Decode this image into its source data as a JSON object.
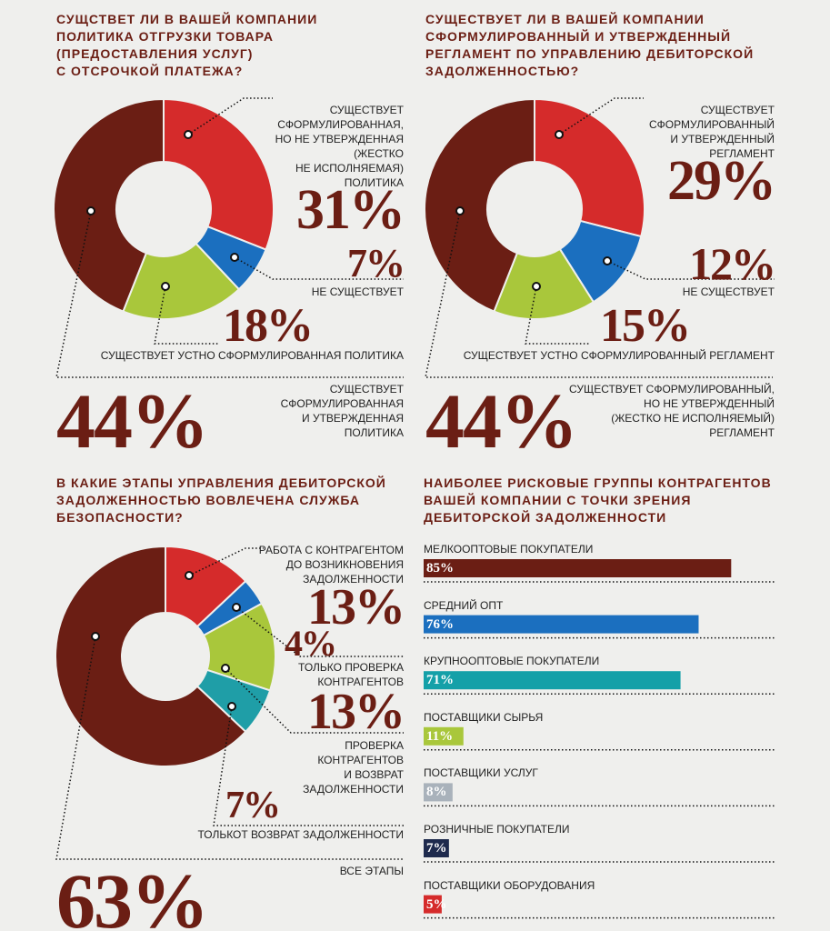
{
  "chart_data": [
    {
      "type": "donut",
      "title": "СУЩСТВЕТ ЛИ В ВАШЕЙ КОМПАНИИ\nПОЛИТИКА ОТГРУЗКИ ТОВАРА\n(ПРЕДОСТАВЛЕНИЯ УСЛУГ)\nС ОТСРОЧКОЙ ПЛАТЕЖА?",
      "categories": [
        "СУЩЕСТВУЕТ\nСФОРМУЛИРОВАННАЯ,\nНО НЕ УТВЕРЖДЕННАЯ\n(ЖЕСТКО\nНЕ ИСПОЛНЯЕМАЯ)\nПОЛИТИКА",
        "НЕ СУЩЕСТВУЕТ",
        "СУЩЕСТВУЕТ УСТНО СФОРМУЛИРОВАННАЯ ПОЛИТИКА",
        "СУЩЕСТВУЕТ\nСФОРМУЛИРОВАННАЯ\nИ УТВЕРЖДЕННАЯ\nПОЛИТИКА"
      ],
      "values": [
        31,
        7,
        18,
        44
      ],
      "value_labels": [
        "31%",
        "7%",
        "18%",
        "44%"
      ],
      "colors": [
        "#d52b2b",
        "#1b6fbf",
        "#a9c73b",
        "#6b1e14"
      ]
    },
    {
      "type": "donut",
      "title": "СУЩЕСТВУЕТ ЛИ В ВАШЕЙ КОМПАНИИ\nСФОРМУЛИРОВАННЫЙ И УТВЕРЖДЕННЫЙ\nРЕГЛАМЕНТ ПО УПРАВЛЕНИЮ ДЕБИТОРСКОЙ\nЗАДОЛЖЕННОСТЬЮ?",
      "categories": [
        "СУЩЕСТВУЕТ\nСФОРМУЛИРОВАННЫЙ\nИ УТВЕРЖДЕННЫЙ\nРЕГЛАМЕНТ",
        "НЕ СУЩЕСТВУЕТ",
        "СУЩЕСТВУЕТ УСТНО СФОРМУЛИРОВАННЫЙ РЕГЛАМЕНТ",
        "СУЩЕСТВУЕТ СФОРМУЛИРОВАННЫЙ,\nНО НЕ УТВЕРЖДЕННЫЙ\n(ЖЕСТКО НЕ ИСПОЛНЯЕМЫЙ)\nРЕГЛАМЕНТ"
      ],
      "values": [
        29,
        12,
        15,
        44
      ],
      "value_labels": [
        "29%",
        "12%",
        "15%",
        "44%"
      ],
      "colors": [
        "#d52b2b",
        "#1b6fbf",
        "#a9c73b",
        "#6b1e14"
      ]
    },
    {
      "type": "donut",
      "title": "В КАКИЕ ЭТАПЫ УПРАВЛЕНИЯ ДЕБИТОРСКОЙ\nЗАДОЛЖЕННОСТЬЮ ВОВЛЕЧЕНА СЛУЖБА\nБЕЗОПАСНОСТИ?",
      "categories": [
        "РАБОТА С КОНТРАГЕНТОМ\nДО ВОЗНИКНОВЕНИЯ\nЗАДОЛЖЕННОСТИ",
        "ТОЛЬКО ПРОВЕРКА\nКОНТРАГЕНТОВ",
        "ПРОВЕРКА\nКОНТРАГЕНТОВ\nИ ВОЗВРАТ\nЗАДОЛЖЕННОСТИ",
        "ТОЛЬКОТ ВОЗВРАТ ЗАДОЛЖЕННОСТИ",
        "ВСЕ ЭТАПЫ"
      ],
      "values": [
        13,
        4,
        13,
        7,
        63
      ],
      "value_labels": [
        "13%",
        "4%",
        "13%",
        "7%",
        "63%"
      ],
      "colors": [
        "#d52b2b",
        "#1b6fbf",
        "#a9c73b",
        "#1f9ea7",
        "#6b1e14"
      ]
    },
    {
      "type": "bar",
      "title": "НАИБОЛЕЕ РИСКОВЫЕ ГРУППЫ КОНТРАГЕНТОВ\nВАШЕЙ КОМПАНИИ С ТОЧКИ ЗРЕНИЯ\nДЕБИТОРСКОЙ ЗАДОЛЖЕННОСТИ",
      "categories": [
        "МЕЛКООПТОВЫЕ ПОКУПАТЕЛИ",
        "СРЕДНИЙ ОПТ",
        "КРУПНООПТОВЫЕ ПОКУПАТЕЛИ",
        "ПОСТАВЩИКИ СЫРЬЯ",
        "ПОСТАВЩИКИ УСЛУГ",
        "РОЗНИЧНЫЕ ПОКУПАТЕЛИ",
        "ПОСТАВЩИКИ ОБОРУДОВАНИЯ"
      ],
      "values": [
        85,
        76,
        71,
        11,
        8,
        7,
        5
      ],
      "value_labels": [
        "85%",
        "76%",
        "71%",
        "11%",
        "8%",
        "7%",
        "5%"
      ],
      "colors": [
        "#6b1e14",
        "#1b6fbf",
        "#14a0a8",
        "#a9c73b",
        "#a9b2bb",
        "#1e2a4d",
        "#d52b2b"
      ]
    }
  ]
}
